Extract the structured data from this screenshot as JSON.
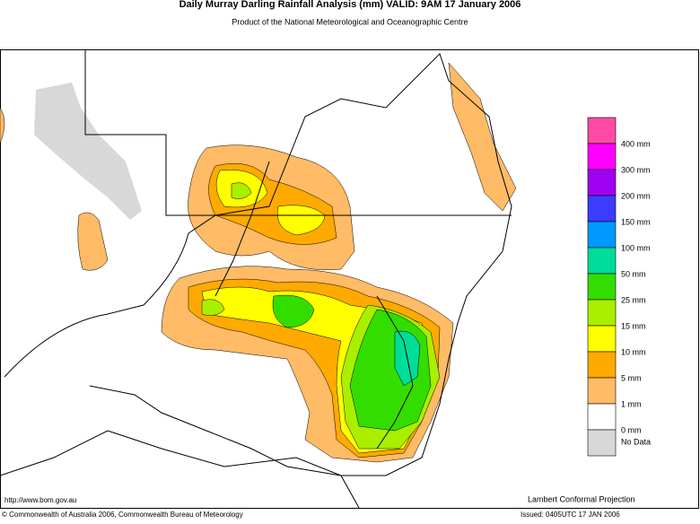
{
  "header": {
    "title": "Daily Murray Darling Rainfall Analysis (mm)  VALID: 9AM 17 January 2006",
    "subtitle": "Product of the National Meteorological and Oceanographic Centre"
  },
  "legend": {
    "colors": [
      "#ff4aa5",
      "#ff00ff",
      "#a000f0",
      "#3c3cff",
      "#0099ff",
      "#00dd99",
      "#33dd00",
      "#aaee00",
      "#ffff00",
      "#ffaa00",
      "#ffbb66",
      "#ffffff",
      "#d8d8d8"
    ],
    "labels": [
      "400 mm",
      "300 mm",
      "200 mm",
      "150 mm",
      "100 mm",
      "50 mm",
      "25 mm",
      "15 mm",
      "10 mm",
      "5 mm",
      "1 mm",
      "0 mm"
    ],
    "no_data": "No Data"
  },
  "footer": {
    "url": "http://www.bom.gov.au",
    "projection": "Lambert Conformal Projection",
    "copyright": "© Commonwealth of Australia 2006, Commonwealth Bureau of Meteorology",
    "issued": "Issued: 0405UTC 17 JAN 2006"
  }
}
